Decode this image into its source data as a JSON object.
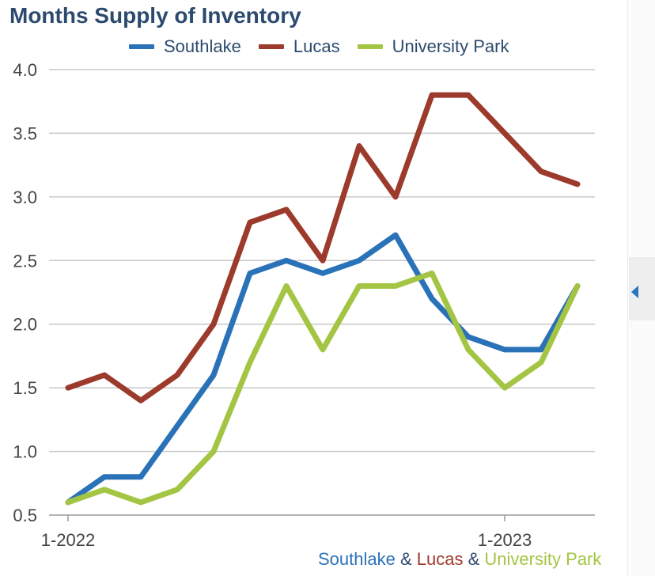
{
  "title": "Months Supply of Inventory",
  "colors": {
    "southlake": "#2a72b8",
    "lucas": "#9c3a2b",
    "university_park": "#a3c543",
    "ampersand": "#2b4a6e",
    "grid": "#c9c9c9",
    "axis_text": "#444444"
  },
  "legend": [
    {
      "name": "Southlake"
    },
    {
      "name": "Lucas"
    },
    {
      "name": "University Park"
    }
  ],
  "footer": {
    "southlake": "Southlake",
    "amp1": " & ",
    "lucas": "Lucas",
    "amp2": " & ",
    "university_park": "University Park"
  },
  "chart_data": {
    "type": "line",
    "title": "Months Supply of Inventory",
    "xlabel": "",
    "ylabel": "",
    "ylim": [
      0.5,
      4.0
    ],
    "yticks": [
      "0.5",
      "1.0",
      "1.5",
      "2.0",
      "2.5",
      "3.0",
      "3.5",
      "4.0"
    ],
    "xtick_labels": [
      {
        "label": "1-2022",
        "index": 0
      },
      {
        "label": "1-2023",
        "index": 12
      }
    ],
    "grid": true,
    "legend_position": "top",
    "series": [
      {
        "name": "Southlake",
        "color": "#2a72b8",
        "values": [
          0.6,
          0.8,
          0.8,
          1.2,
          1.6,
          2.4,
          2.5,
          2.4,
          2.5,
          2.7,
          2.2,
          1.9,
          1.8,
          1.8,
          2.3
        ]
      },
      {
        "name": "Lucas",
        "color": "#9c3a2b",
        "values": [
          1.5,
          1.6,
          1.4,
          1.6,
          2.0,
          2.8,
          2.9,
          2.5,
          3.4,
          3.0,
          3.8,
          3.8,
          3.5,
          3.2,
          3.1
        ]
      },
      {
        "name": "University Park",
        "color": "#a3c543",
        "values": [
          0.6,
          0.7,
          0.6,
          0.7,
          1.0,
          1.7,
          2.3,
          1.8,
          2.3,
          2.3,
          2.4,
          1.8,
          1.5,
          1.7,
          2.3
        ]
      }
    ]
  }
}
